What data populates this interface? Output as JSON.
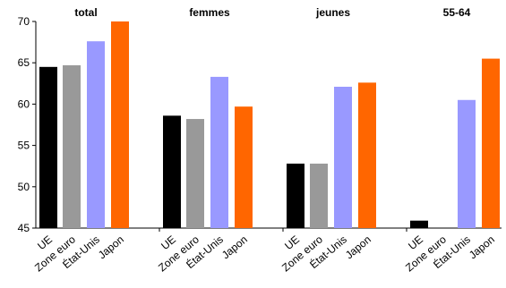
{
  "chart_data": {
    "type": "bar",
    "title": "",
    "xlabel": "",
    "ylabel": "",
    "ylim": [
      45,
      70
    ],
    "yticks": [
      45,
      50,
      55,
      60,
      65,
      70
    ],
    "grid": false,
    "legend": "none",
    "categories": [
      "UE",
      "Zone euro",
      "État-Unis",
      "Japon"
    ],
    "colors": {
      "UE": "#000000",
      "Zone euro": "#999999",
      "État-Unis": "#9999ff",
      "Japon": "#ff6600"
    },
    "panels": [
      {
        "title": "total",
        "values": [
          64.5,
          64.7,
          67.6,
          70.0
        ]
      },
      {
        "title": "femmes",
        "values": [
          58.6,
          58.2,
          63.3,
          59.7
        ]
      },
      {
        "title": "jeunes",
        "values": [
          52.8,
          52.8,
          62.1,
          62.6
        ]
      },
      {
        "title": "55-64",
        "values": [
          45.9,
          45.0,
          60.5,
          65.5
        ]
      }
    ]
  }
}
